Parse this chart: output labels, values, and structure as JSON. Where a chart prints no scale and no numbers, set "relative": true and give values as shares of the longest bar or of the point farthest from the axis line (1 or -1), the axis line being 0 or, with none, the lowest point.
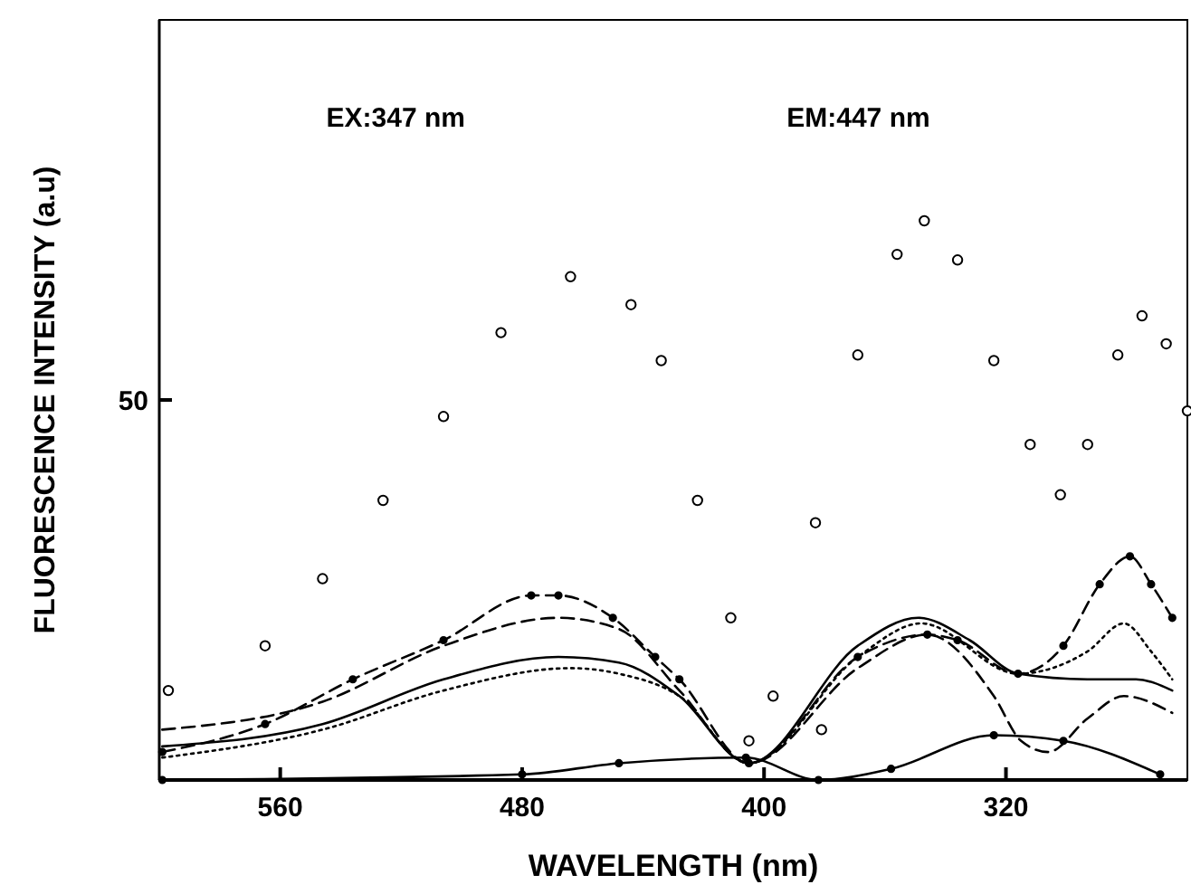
{
  "chart_data": {
    "type": "line",
    "xlabel": "WAVELENGTH (nm)",
    "ylabel": "FLUORESCENCE INTENSITY (a.u)",
    "relative": true,
    "annotations": [
      "EX:347 nm",
      "EM:447 nm",
      "50"
    ],
    "xlim": [
      600,
      260
    ],
    "xticks": [
      560,
      480,
      400,
      320
    ],
    "series": [
      {
        "type": "scatter",
        "color": "#000000",
        "marker": "circle",
        "x": [
          597,
          565,
          546,
          526,
          506,
          487,
          464,
          444,
          434,
          422,
          411,
          397,
          381,
          405,
          383,
          369,
          356,
          347,
          336,
          324,
          312,
          302,
          293,
          283,
          275,
          267,
          260
        ],
        "values": [
          0.16,
          0.24,
          0.36,
          0.5,
          0.65,
          0.8,
          0.9,
          0.85,
          0.75,
          0.5,
          0.29,
          0.15,
          0.09,
          0.07,
          0.46,
          0.76,
          0.94,
          1,
          0.93,
          0.75,
          0.6,
          0.51,
          0.6,
          0.76,
          0.83,
          0.78,
          0.66
        ]
      },
      {
        "color": "#000000",
        "marker": "circle",
        "line_style": "dashed",
        "x": [
          599,
          565,
          536,
          506,
          477,
          468,
          450,
          436,
          428,
          405,
          369,
          346,
          336,
          316,
          301,
          289,
          279,
          272,
          265
        ],
        "values": [
          0.05,
          0.1,
          0.18,
          0.25,
          0.33,
          0.33,
          0.29,
          0.22,
          0.18,
          0.03,
          0.22,
          0.26,
          0.25,
          0.19,
          0.24,
          0.35,
          0.4,
          0.35,
          0.29
        ]
      },
      {
        "color": "#000000",
        "marker": "none",
        "line_style": "dashed",
        "x": [
          599,
          546,
          506,
          468,
          448,
          428,
          405,
          369,
          346,
          324,
          315,
          306,
          293,
          281,
          265
        ],
        "values": [
          0.09,
          0.14,
          0.24,
          0.29,
          0.27,
          0.16,
          0.03,
          0.2,
          0.26,
          0.15,
          0.07,
          0.05,
          0.11,
          0.15,
          0.12
        ]
      },
      {
        "color": "#000000",
        "marker": "none",
        "line_style": "solid",
        "x": [
          599,
          546,
          506,
          468,
          448,
          428,
          405,
          369,
          349,
          332,
          316,
          293,
          277,
          265
        ],
        "values": [
          0.06,
          0.1,
          0.18,
          0.22,
          0.21,
          0.15,
          0.03,
          0.24,
          0.29,
          0.25,
          0.19,
          0.18,
          0.18,
          0.16
        ]
      },
      {
        "color": "#000000",
        "marker": "none",
        "line_style": "dotted",
        "x": [
          599,
          546,
          506,
          464,
          448,
          428,
          405,
          369,
          348,
          316,
          293,
          281,
          272,
          265
        ],
        "values": [
          0.04,
          0.09,
          0.16,
          0.2,
          0.19,
          0.15,
          0.03,
          0.22,
          0.28,
          0.19,
          0.23,
          0.28,
          0.23,
          0.18
        ]
      },
      {
        "color": "#000000",
        "marker": "circle",
        "line_style": "solid",
        "x": [
          599,
          480,
          448,
          406,
          382,
          358,
          324,
          301,
          269
        ],
        "values": [
          0,
          0.01,
          0.03,
          0.04,
          0,
          0.02,
          0.08,
          0.07,
          0.01
        ]
      }
    ]
  }
}
